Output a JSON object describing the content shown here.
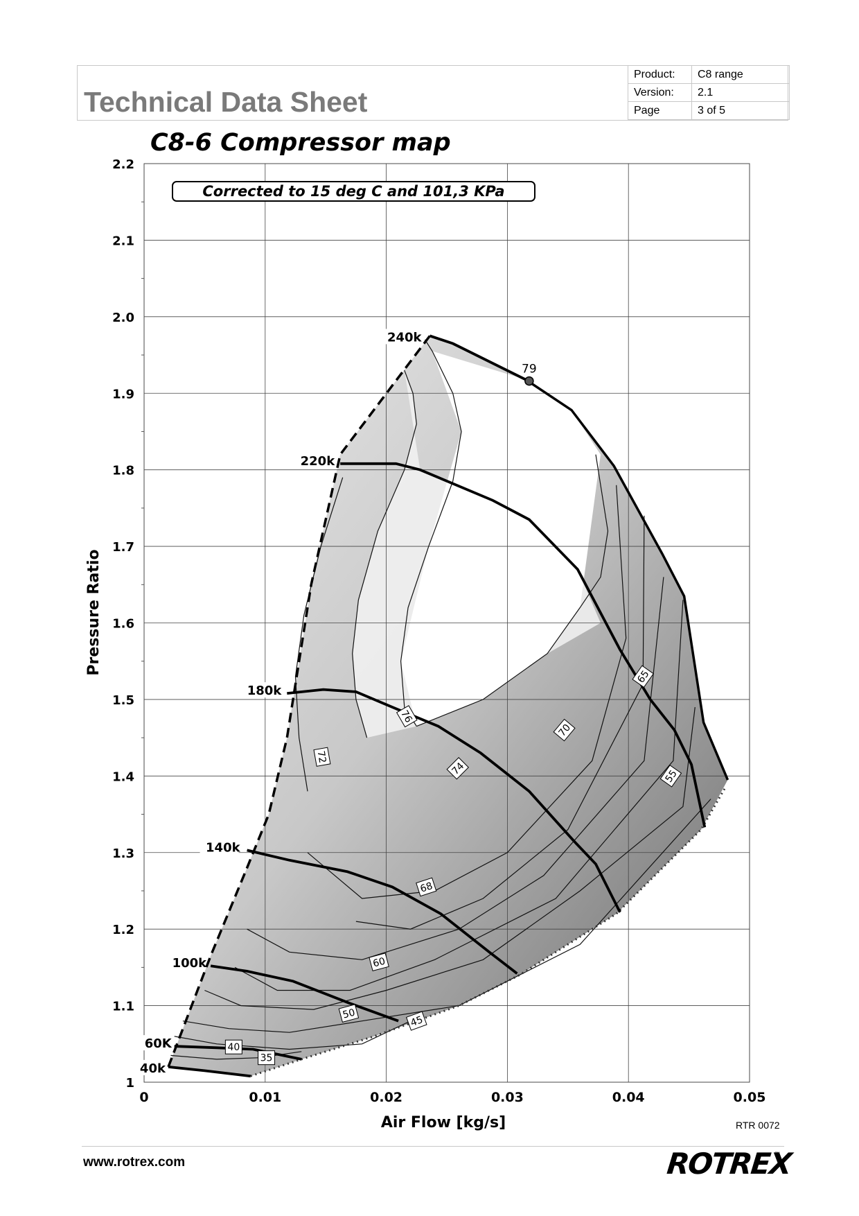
{
  "header": {
    "title": "Technical Data Sheet",
    "meta": [
      {
        "key": "Product:",
        "value": "C8 range"
      },
      {
        "key": "Version:",
        "value": "2.1"
      },
      {
        "key": "Page",
        "value": "3 of 5"
      }
    ]
  },
  "chart_data": {
    "type": "line",
    "title": "C8-6 Compressor map",
    "annotation": "Corrected to 15 deg C and 101,3 KPa",
    "xlabel": "Air Flow [kg/s]",
    "ylabel": "Pressure Ratio",
    "xlim": [
      0,
      0.05
    ],
    "ylim": [
      1.0,
      2.2
    ],
    "x_ticks": [
      0,
      0.01,
      0.02,
      0.03,
      0.04,
      0.05
    ],
    "x_tick_labels": [
      "0",
      "0.01",
      "0.02",
      "0.03",
      "0.04",
      "0.05"
    ],
    "y_ticks": [
      1.0,
      1.1,
      1.2,
      1.3,
      1.4,
      1.5,
      1.6,
      1.7,
      1.8,
      1.9,
      2.0,
      2.1,
      2.2
    ],
    "y_tick_labels": [
      "1",
      "1.1",
      "1.2",
      "1.3",
      "1.4",
      "1.5",
      "1.6",
      "1.7",
      "1.8",
      "1.9",
      "2.0",
      "2.1",
      "2.2"
    ],
    "grid": true,
    "surge_line": [
      [
        0.002,
        1.02
      ],
      [
        0.0055,
        1.165
      ],
      [
        0.0085,
        1.28
      ],
      [
        0.0103,
        1.35
      ],
      [
        0.0118,
        1.45
      ],
      [
        0.0138,
        1.65
      ],
      [
        0.0162,
        1.82
      ],
      [
        0.0236,
        1.975
      ]
    ],
    "choke_line": [
      [
        0.0088,
        1.008
      ],
      [
        0.013,
        1.03
      ],
      [
        0.019,
        1.06
      ],
      [
        0.0225,
        1.08
      ],
      [
        0.026,
        1.1
      ],
      [
        0.031,
        1.14
      ],
      [
        0.039,
        1.22
      ],
      [
        0.046,
        1.33
      ],
      [
        0.048,
        1.385
      ]
    ],
    "max_flow_line": [
      [
        0.0236,
        1.975
      ],
      [
        0.0255,
        1.965
      ],
      [
        0.0315,
        1.918
      ],
      [
        0.0353,
        1.878
      ],
      [
        0.0388,
        1.805
      ],
      [
        0.0428,
        1.69
      ],
      [
        0.0446,
        1.635
      ],
      [
        0.0462,
        1.47
      ],
      [
        0.0482,
        1.395
      ]
    ],
    "speed_lines": [
      {
        "label": "40k",
        "points": [
          [
            0.002,
            1.02
          ],
          [
            0.005,
            1.015
          ],
          [
            0.0088,
            1.008
          ]
        ]
      },
      {
        "label": "60K",
        "points": [
          [
            0.0025,
            1.047
          ],
          [
            0.006,
            1.045
          ],
          [
            0.009,
            1.043
          ],
          [
            0.013,
            1.03
          ]
        ]
      },
      {
        "label": "100k",
        "points": [
          [
            0.0055,
            1.152
          ],
          [
            0.0085,
            1.145
          ],
          [
            0.0123,
            1.132
          ],
          [
            0.017,
            1.103
          ],
          [
            0.021,
            1.08
          ]
        ]
      },
      {
        "label": "140k",
        "points": [
          [
            0.0085,
            1.303
          ],
          [
            0.012,
            1.29
          ],
          [
            0.0168,
            1.275
          ],
          [
            0.0205,
            1.255
          ],
          [
            0.0245,
            1.22
          ],
          [
            0.0285,
            1.17
          ],
          [
            0.0308,
            1.142
          ]
        ]
      },
      {
        "label": "180k",
        "points": [
          [
            0.0118,
            1.508
          ],
          [
            0.0148,
            1.513
          ],
          [
            0.0175,
            1.51
          ],
          [
            0.0205,
            1.49
          ],
          [
            0.0243,
            1.465
          ],
          [
            0.0278,
            1.43
          ],
          [
            0.0318,
            1.38
          ],
          [
            0.0355,
            1.315
          ],
          [
            0.0373,
            1.285
          ],
          [
            0.0393,
            1.222
          ]
        ]
      },
      {
        "label": "220k",
        "points": [
          [
            0.0162,
            1.808
          ],
          [
            0.0208,
            1.808
          ],
          [
            0.0228,
            1.8
          ],
          [
            0.0288,
            1.76
          ],
          [
            0.0318,
            1.735
          ],
          [
            0.0358,
            1.67
          ],
          [
            0.0393,
            1.565
          ],
          [
            0.0418,
            1.5
          ],
          [
            0.0438,
            1.46
          ],
          [
            0.0452,
            1.415
          ],
          [
            0.0463,
            1.333
          ]
        ]
      },
      {
        "label": "240k",
        "points": [
          [
            0.0236,
            1.975
          ],
          [
            0.0255,
            1.965
          ],
          [
            0.0315,
            1.918
          ]
        ]
      }
    ],
    "efficiency_islands": [
      {
        "label": "79",
        "point": [
          0.0318,
          1.916
        ]
      },
      {
        "label": "76",
        "points": [
          [
            0.0225,
            1.465
          ],
          [
            0.0215,
            1.49
          ],
          [
            0.0212,
            1.55
          ],
          [
            0.0218,
            1.62
          ],
          [
            0.0235,
            1.7
          ],
          [
            0.0255,
            1.785
          ],
          [
            0.0262,
            1.85
          ],
          [
            0.0255,
            1.9
          ],
          [
            0.0238,
            1.955
          ],
          [
            0.0232,
            1.97
          ]
        ]
      },
      {
        "label": "74",
        "points": [
          [
            0.0184,
            1.45
          ],
          [
            0.0175,
            1.5
          ],
          [
            0.0172,
            1.56
          ],
          [
            0.0177,
            1.63
          ],
          [
            0.0193,
            1.72
          ],
          [
            0.0215,
            1.8
          ],
          [
            0.0225,
            1.86
          ],
          [
            0.0222,
            1.9
          ],
          [
            0.0215,
            1.93
          ]
        ]
      },
      {
        "label": "72",
        "points": [
          [
            0.0135,
            1.38
          ],
          [
            0.0128,
            1.45
          ],
          [
            0.0125,
            1.53
          ],
          [
            0.0132,
            1.61
          ],
          [
            0.0146,
            1.7
          ],
          [
            0.0164,
            1.79
          ]
        ]
      },
      {
        "label": "70",
        "points": [
          [
            0.0225,
            1.465
          ],
          [
            0.028,
            1.5
          ],
          [
            0.0333,
            1.56
          ],
          [
            0.036,
            1.62
          ],
          [
            0.0377,
            1.66
          ],
          [
            0.0383,
            1.72
          ],
          [
            0.0373,
            1.82
          ]
        ]
      },
      {
        "label": "68",
        "points": [
          [
            0.0135,
            1.3
          ],
          [
            0.018,
            1.24
          ],
          [
            0.024,
            1.25
          ],
          [
            0.03,
            1.3
          ],
          [
            0.037,
            1.42
          ],
          [
            0.0398,
            1.58
          ],
          [
            0.039,
            1.78
          ]
        ]
      },
      {
        "label": "65",
        "points": [
          [
            0.0175,
            1.21
          ],
          [
            0.022,
            1.2
          ],
          [
            0.028,
            1.24
          ],
          [
            0.035,
            1.33
          ],
          [
            0.0412,
            1.52
          ],
          [
            0.0413,
            1.74
          ]
        ]
      },
      {
        "label": "60",
        "points": [
          [
            0.0085,
            1.2
          ],
          [
            0.012,
            1.17
          ],
          [
            0.018,
            1.16
          ],
          [
            0.026,
            1.2
          ],
          [
            0.033,
            1.27
          ],
          [
            0.0413,
            1.42
          ],
          [
            0.0429,
            1.66
          ]
        ]
      },
      {
        "label": "55",
        "points": [
          [
            0.0075,
            1.15
          ],
          [
            0.011,
            1.12
          ],
          [
            0.017,
            1.12
          ],
          [
            0.024,
            1.16
          ],
          [
            0.034,
            1.24
          ],
          [
            0.0437,
            1.42
          ],
          [
            0.0445,
            1.63
          ]
        ]
      },
      {
        "label": "50",
        "points": [
          [
            0.005,
            1.12
          ],
          [
            0.008,
            1.1
          ],
          [
            0.014,
            1.095
          ],
          [
            0.02,
            1.12
          ],
          [
            0.028,
            1.16
          ],
          [
            0.036,
            1.25
          ],
          [
            0.0445,
            1.36
          ],
          [
            0.0455,
            1.49
          ]
        ]
      },
      {
        "label": "45",
        "points": [
          [
            0.0032,
            1.08
          ],
          [
            0.007,
            1.07
          ],
          [
            0.012,
            1.065
          ],
          [
            0.018,
            1.08
          ],
          [
            0.026,
            1.1
          ],
          [
            0.036,
            1.18
          ],
          [
            0.0468,
            1.37
          ]
        ]
      },
      {
        "label": "40",
        "points": [
          [
            0.0025,
            1.06
          ],
          [
            0.006,
            1.05
          ],
          [
            0.012,
            1.043
          ],
          [
            0.018,
            1.05
          ],
          [
            0.022,
            1.08
          ]
        ]
      },
      {
        "label": "35",
        "points": [
          [
            0.0022,
            1.035
          ],
          [
            0.006,
            1.03
          ],
          [
            0.0095,
            1.032
          ],
          [
            0.013,
            1.04
          ]
        ]
      }
    ]
  },
  "footer": {
    "ref": "RTR 0072",
    "website": "www.rotrex.com",
    "logo_text": "ROTREX",
    "logo_tm": "™"
  }
}
